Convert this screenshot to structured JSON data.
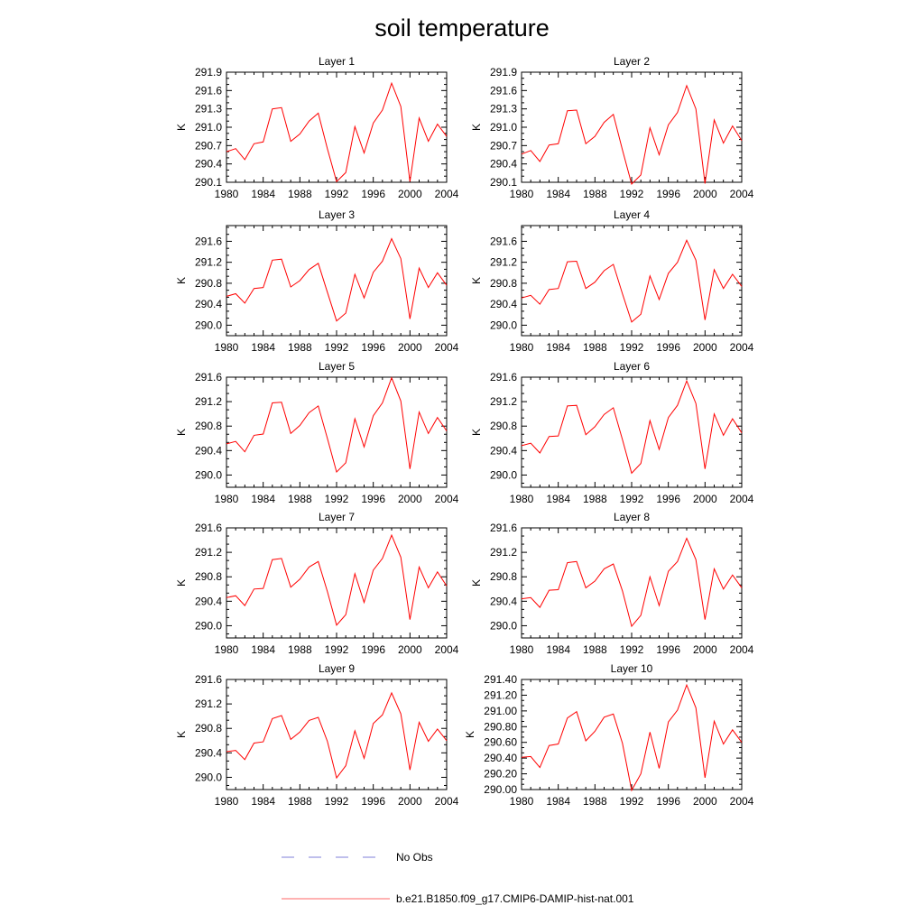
{
  "title": "soil temperature",
  "legend": {
    "placement": "bottom",
    "entries": [
      {
        "label": "No Obs",
        "color": "#5555cc",
        "style": "dashed"
      },
      {
        "label": "b.e21.B1850.f09_g17.CMIP6-DAMIP-hist-nat.001",
        "color": "#ff3333",
        "style": "solid"
      }
    ]
  },
  "chart_data": [
    {
      "type": "line",
      "title": "Layer 1",
      "ylabel": "K",
      "xlim": [
        1980,
        2004
      ],
      "ylim": [
        290.1,
        291.9
      ],
      "yticks": [
        290.1,
        290.4,
        290.7,
        291.0,
        291.3,
        291.6,
        291.9
      ],
      "ytick_labels": [
        "290.1",
        "290.4",
        "290.7",
        "291.0",
        "291.3",
        "291.6",
        "291.9"
      ],
      "xticks": [
        1980,
        1984,
        1988,
        1992,
        1996,
        2000,
        2004
      ],
      "xtick_labels": [
        "1980",
        "1984",
        "1988",
        "1992",
        "1996",
        "2000",
        "2004"
      ],
      "series": [
        {
          "color": "#ff0000",
          "x": [
            1980,
            1981,
            1982,
            1983,
            1984,
            1985,
            1986,
            1987,
            1988,
            1989,
            1990,
            1991,
            1992,
            1993,
            1994,
            1995,
            1996,
            1997,
            1998,
            1999,
            2000,
            2001,
            2002,
            2003,
            2004
          ],
          "values": [
            290.6,
            290.65,
            290.47,
            290.73,
            290.76,
            291.3,
            291.32,
            290.77,
            290.89,
            291.1,
            291.23,
            290.65,
            290.11,
            290.26,
            291.01,
            290.58,
            291.07,
            291.28,
            291.72,
            291.34,
            290.11,
            291.15,
            290.77,
            291.05,
            290.85
          ]
        }
      ]
    },
    {
      "type": "line",
      "title": "Layer 2",
      "ylabel": "K",
      "xlim": [
        1980,
        2004
      ],
      "ylim": [
        290.1,
        291.9
      ],
      "yticks": [
        290.1,
        290.4,
        290.7,
        291.0,
        291.3,
        291.6,
        291.9
      ],
      "ytick_labels": [
        "290.1",
        "290.4",
        "290.7",
        "291.0",
        "291.3",
        "291.6",
        "291.9"
      ],
      "xticks": [
        1980,
        1984,
        1988,
        1992,
        1996,
        2000,
        2004
      ],
      "xtick_labels": [
        "1980",
        "1984",
        "1988",
        "1992",
        "1996",
        "2000",
        "2004"
      ],
      "series": [
        {
          "color": "#ff0000",
          "x": [
            1980,
            1981,
            1982,
            1983,
            1984,
            1985,
            1986,
            1987,
            1988,
            1989,
            1990,
            1991,
            1992,
            1993,
            1994,
            1995,
            1996,
            1997,
            1998,
            1999,
            2000,
            2001,
            2002,
            2003,
            2004
          ],
          "values": [
            290.56,
            290.62,
            290.44,
            290.71,
            290.73,
            291.27,
            291.28,
            290.73,
            290.85,
            291.08,
            291.21,
            290.63,
            290.07,
            290.22,
            290.99,
            290.55,
            291.04,
            291.24,
            291.68,
            291.3,
            290.08,
            291.12,
            290.74,
            291.02,
            290.78
          ]
        }
      ]
    },
    {
      "type": "line",
      "title": "Layer 3",
      "ylabel": "K",
      "xlim": [
        1980,
        2004
      ],
      "ylim": [
        289.8,
        291.9
      ],
      "yticks": [
        290.0,
        290.4,
        290.8,
        291.2,
        291.6
      ],
      "ytick_labels": [
        "290.0",
        "290.4",
        "290.8",
        "291.2",
        "291.6"
      ],
      "xticks": [
        1980,
        1984,
        1988,
        1992,
        1996,
        2000,
        2004
      ],
      "xtick_labels": [
        "1980",
        "1984",
        "1988",
        "1992",
        "1996",
        "2000",
        "2004"
      ],
      "series": [
        {
          "color": "#ff0000",
          "x": [
            1980,
            1981,
            1982,
            1983,
            1984,
            1985,
            1986,
            1987,
            1988,
            1989,
            1990,
            1991,
            1992,
            1993,
            1994,
            1995,
            1996,
            1997,
            1998,
            1999,
            2000,
            2001,
            2002,
            2003,
            2004
          ],
          "values": [
            290.55,
            290.6,
            290.42,
            290.7,
            290.72,
            291.24,
            291.26,
            290.73,
            290.85,
            291.06,
            291.18,
            290.63,
            290.08,
            290.23,
            290.97,
            290.52,
            291.01,
            291.22,
            291.65,
            291.27,
            290.12,
            291.09,
            290.72,
            291.0,
            290.76
          ]
        }
      ]
    },
    {
      "type": "line",
      "title": "Layer 4",
      "ylabel": "K",
      "xlim": [
        1980,
        2004
      ],
      "ylim": [
        289.8,
        291.9
      ],
      "yticks": [
        290.0,
        290.4,
        290.8,
        291.2,
        291.6
      ],
      "ytick_labels": [
        "290.0",
        "290.4",
        "290.8",
        "291.2",
        "291.6"
      ],
      "xticks": [
        1980,
        1984,
        1988,
        1992,
        1996,
        2000,
        2004
      ],
      "xtick_labels": [
        "1980",
        "1984",
        "1988",
        "1992",
        "1996",
        "2000",
        "2004"
      ],
      "series": [
        {
          "color": "#ff0000",
          "x": [
            1980,
            1981,
            1982,
            1983,
            1984,
            1985,
            1986,
            1987,
            1988,
            1989,
            1990,
            1991,
            1992,
            1993,
            1994,
            1995,
            1996,
            1997,
            1998,
            1999,
            2000,
            2001,
            2002,
            2003,
            2004
          ],
          "values": [
            290.52,
            290.57,
            290.4,
            290.68,
            290.7,
            291.21,
            291.22,
            290.7,
            290.82,
            291.04,
            291.16,
            290.6,
            290.06,
            290.21,
            290.94,
            290.49,
            290.99,
            291.2,
            291.62,
            291.24,
            290.1,
            291.06,
            290.7,
            290.97,
            290.74
          ]
        }
      ]
    },
    {
      "type": "line",
      "title": "Layer 5",
      "ylabel": "K",
      "xlim": [
        1980,
        2004
      ],
      "ylim": [
        289.8,
        291.6
      ],
      "yticks": [
        290.0,
        290.4,
        290.8,
        291.2,
        291.6
      ],
      "ytick_labels": [
        "290.0",
        "290.4",
        "290.8",
        "291.2",
        "291.6"
      ],
      "xticks": [
        1980,
        1984,
        1988,
        1992,
        1996,
        2000,
        2004
      ],
      "xtick_labels": [
        "1980",
        "1984",
        "1988",
        "1992",
        "1996",
        "2000",
        "2004"
      ],
      "series": [
        {
          "color": "#ff0000",
          "x": [
            1980,
            1981,
            1982,
            1983,
            1984,
            1985,
            1986,
            1987,
            1988,
            1989,
            1990,
            1991,
            1992,
            1993,
            1994,
            1995,
            1996,
            1997,
            1998,
            1999,
            2000,
            2001,
            2002,
            2003,
            2004
          ],
          "values": [
            290.51,
            290.55,
            290.38,
            290.65,
            290.67,
            291.18,
            291.19,
            290.68,
            290.81,
            291.02,
            291.13,
            290.6,
            290.05,
            290.2,
            290.92,
            290.46,
            290.97,
            291.18,
            291.59,
            291.21,
            290.1,
            291.03,
            290.68,
            290.94,
            290.72
          ]
        }
      ]
    },
    {
      "type": "line",
      "title": "Layer 6",
      "ylabel": "K",
      "xlim": [
        1980,
        2004
      ],
      "ylim": [
        289.8,
        291.6
      ],
      "yticks": [
        290.0,
        290.4,
        290.8,
        291.2,
        291.6
      ],
      "ytick_labels": [
        "290.0",
        "290.4",
        "290.8",
        "291.2",
        "291.6"
      ],
      "xticks": [
        1980,
        1984,
        1988,
        1992,
        1996,
        2000,
        2004
      ],
      "xtick_labels": [
        "1980",
        "1984",
        "1988",
        "1992",
        "1996",
        "2000",
        "2004"
      ],
      "series": [
        {
          "color": "#ff0000",
          "x": [
            1980,
            1981,
            1982,
            1983,
            1984,
            1985,
            1986,
            1987,
            1988,
            1989,
            1990,
            1991,
            1992,
            1993,
            1994,
            1995,
            1996,
            1997,
            1998,
            1999,
            2000,
            2001,
            2002,
            2003,
            2004
          ],
          "values": [
            290.48,
            290.52,
            290.36,
            290.63,
            290.64,
            291.13,
            291.14,
            290.66,
            290.79,
            290.99,
            291.1,
            290.58,
            290.03,
            290.19,
            290.89,
            290.42,
            290.94,
            291.14,
            291.54,
            291.17,
            290.1,
            291.0,
            290.65,
            290.92,
            290.69
          ]
        }
      ]
    },
    {
      "type": "line",
      "title": "Layer 7",
      "ylabel": "K",
      "xlim": [
        1980,
        2004
      ],
      "ylim": [
        289.8,
        291.6
      ],
      "yticks": [
        290.0,
        290.4,
        290.8,
        291.2,
        291.6
      ],
      "ytick_labels": [
        "290.0",
        "290.4",
        "290.8",
        "291.2",
        "291.6"
      ],
      "xticks": [
        1980,
        1984,
        1988,
        1992,
        1996,
        2000,
        2004
      ],
      "xtick_labels": [
        "1980",
        "1984",
        "1988",
        "1992",
        "1996",
        "2000",
        "2004"
      ],
      "series": [
        {
          "color": "#ff0000",
          "x": [
            1980,
            1981,
            1982,
            1983,
            1984,
            1985,
            1986,
            1987,
            1988,
            1989,
            1990,
            1991,
            1992,
            1993,
            1994,
            1995,
            1996,
            1997,
            1998,
            1999,
            2000,
            2001,
            2002,
            2003,
            2004
          ],
          "values": [
            290.46,
            290.49,
            290.33,
            290.6,
            290.61,
            291.08,
            291.1,
            290.63,
            290.76,
            290.96,
            291.05,
            290.56,
            290.01,
            290.18,
            290.85,
            290.38,
            290.91,
            291.1,
            291.48,
            291.12,
            290.1,
            290.96,
            290.62,
            290.88,
            290.65
          ]
        }
      ]
    },
    {
      "type": "line",
      "title": "Layer 8",
      "ylabel": "K",
      "xlim": [
        1980,
        2004
      ],
      "ylim": [
        289.8,
        291.6
      ],
      "yticks": [
        290.0,
        290.4,
        290.8,
        291.2,
        291.6
      ],
      "ytick_labels": [
        "290.0",
        "290.4",
        "290.8",
        "291.2",
        "291.6"
      ],
      "xticks": [
        1980,
        1984,
        1988,
        1992,
        1996,
        2000,
        2004
      ],
      "xtick_labels": [
        "1980",
        "1984",
        "1988",
        "1992",
        "1996",
        "2000",
        "2004"
      ],
      "series": [
        {
          "color": "#ff0000",
          "x": [
            1980,
            1981,
            1982,
            1983,
            1984,
            1985,
            1986,
            1987,
            1988,
            1989,
            1990,
            1991,
            1992,
            1993,
            1994,
            1995,
            1996,
            1997,
            1998,
            1999,
            2000,
            2001,
            2002,
            2003,
            2004
          ],
          "values": [
            290.44,
            290.46,
            290.3,
            290.58,
            290.59,
            291.03,
            291.05,
            290.62,
            290.73,
            290.93,
            291.01,
            290.57,
            289.99,
            290.17,
            290.8,
            290.33,
            290.89,
            291.05,
            291.43,
            291.08,
            290.1,
            290.93,
            290.6,
            290.83,
            290.62
          ]
        }
      ]
    },
    {
      "type": "line",
      "title": "Layer 9",
      "ylabel": "K",
      "xlim": [
        1980,
        2004
      ],
      "ylim": [
        289.8,
        291.6
      ],
      "yticks": [
        290.0,
        290.4,
        290.8,
        291.2,
        291.6
      ],
      "ytick_labels": [
        "290.0",
        "290.4",
        "290.8",
        "291.2",
        "291.6"
      ],
      "xticks": [
        1980,
        1984,
        1988,
        1992,
        1996,
        2000,
        2004
      ],
      "xtick_labels": [
        "1980",
        "1984",
        "1988",
        "1992",
        "1996",
        "2000",
        "2004"
      ],
      "series": [
        {
          "color": "#ff0000",
          "x": [
            1980,
            1981,
            1982,
            1983,
            1984,
            1985,
            1986,
            1987,
            1988,
            1989,
            1990,
            1991,
            1992,
            1993,
            1994,
            1995,
            1996,
            1997,
            1998,
            1999,
            2000,
            2001,
            2002,
            2003,
            2004
          ],
          "values": [
            290.42,
            290.44,
            290.29,
            290.56,
            290.58,
            290.96,
            291.01,
            290.62,
            290.74,
            290.93,
            290.98,
            290.59,
            289.99,
            290.19,
            290.76,
            290.31,
            290.88,
            291.02,
            291.38,
            291.04,
            290.12,
            290.9,
            290.59,
            290.79,
            290.6
          ]
        }
      ]
    },
    {
      "type": "line",
      "title": "Layer 10",
      "ylabel": "K",
      "xlim": [
        1980,
        2004
      ],
      "ylim": [
        290.0,
        291.4
      ],
      "yticks": [
        290.0,
        290.2,
        290.4,
        290.6,
        290.8,
        291.0,
        291.2,
        291.4
      ],
      "ytick_labels": [
        "290.00",
        "290.20",
        "290.40",
        "290.60",
        "290.80",
        "291.00",
        "291.20",
        "291.40"
      ],
      "xticks": [
        1980,
        1984,
        1988,
        1992,
        1996,
        2000,
        2004
      ],
      "xtick_labels": [
        "1980",
        "1984",
        "1988",
        "1992",
        "1996",
        "2000",
        "2004"
      ],
      "series": [
        {
          "color": "#ff0000",
          "x": [
            1980,
            1981,
            1982,
            1983,
            1984,
            1985,
            1986,
            1987,
            1988,
            1989,
            1990,
            1991,
            1992,
            1993,
            1994,
            1995,
            1996,
            1997,
            1998,
            1999,
            2000,
            2001,
            2002,
            2003,
            2004
          ],
          "values": [
            290.41,
            290.42,
            290.28,
            290.56,
            290.58,
            290.91,
            290.99,
            290.62,
            290.74,
            290.92,
            290.96,
            290.59,
            289.99,
            290.2,
            290.73,
            290.27,
            290.86,
            291.01,
            291.33,
            291.04,
            290.15,
            290.87,
            290.58,
            290.76,
            290.6
          ]
        }
      ]
    }
  ]
}
